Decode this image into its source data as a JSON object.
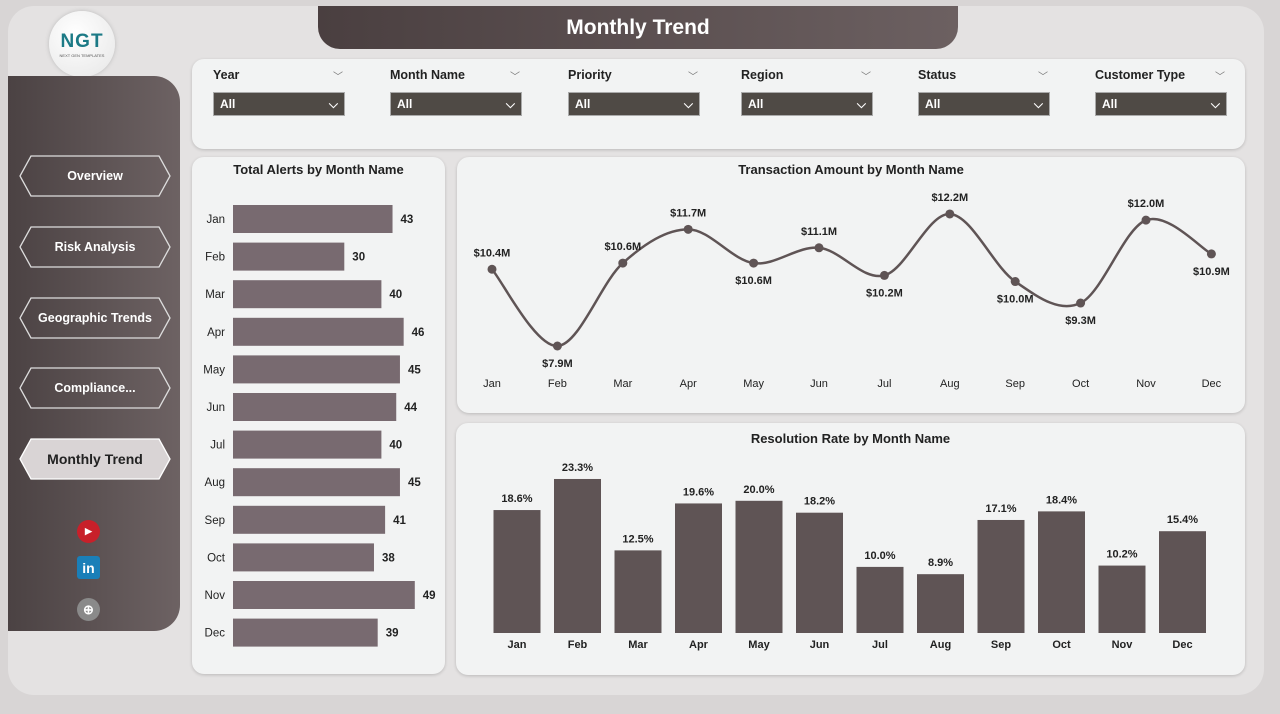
{
  "header": {
    "title": "Monthly Trend"
  },
  "logo": {
    "text": "NGT",
    "tagline": "NEXT GEN TEMPLATES"
  },
  "sidebar": {
    "items": [
      {
        "label": "Overview",
        "active": false
      },
      {
        "label": "Risk Analysis",
        "active": false
      },
      {
        "label": "Geographic Trends",
        "active": false
      },
      {
        "label": "Compliance...",
        "active": false
      },
      {
        "label": "Monthly Trend",
        "active": true
      }
    ],
    "social": [
      {
        "icon": "youtube-icon",
        "label": "YouTube"
      },
      {
        "icon": "linkedin-icon",
        "label": "in"
      },
      {
        "icon": "globe-icon",
        "label": "Web"
      }
    ]
  },
  "filters": [
    {
      "label": "Year",
      "value": "All"
    },
    {
      "label": "Month Name",
      "value": "All"
    },
    {
      "label": "Priority",
      "value": "All"
    },
    {
      "label": "Region",
      "value": "All"
    },
    {
      "label": "Status",
      "value": "All"
    },
    {
      "label": "Customer Type",
      "value": "All"
    }
  ],
  "colors": {
    "accent": "#5f5455",
    "bar_alerts": "#786a70",
    "line": "#5f5455"
  },
  "chart_data": [
    {
      "type": "bar",
      "orientation": "horizontal",
      "title": "Total Alerts by Month Name",
      "categories": [
        "Jan",
        "Feb",
        "Mar",
        "Apr",
        "May",
        "Jun",
        "Jul",
        "Aug",
        "Sep",
        "Oct",
        "Nov",
        "Dec"
      ],
      "values": [
        43,
        30,
        40,
        46,
        45,
        44,
        40,
        45,
        41,
        38,
        49,
        39
      ]
    },
    {
      "type": "line",
      "title": "Transaction Amount by Month Name",
      "categories": [
        "Jan",
        "Feb",
        "Mar",
        "Apr",
        "May",
        "Jun",
        "Jul",
        "Aug",
        "Sep",
        "Oct",
        "Nov",
        "Dec"
      ],
      "values": [
        10.4,
        7.9,
        10.6,
        11.7,
        10.6,
        11.1,
        10.2,
        12.2,
        10.0,
        9.3,
        12.0,
        10.9
      ],
      "labels": [
        "$10.4M",
        "$7.9M",
        "$10.6M",
        "$11.7M",
        "$10.6M",
        "$11.1M",
        "$10.2M",
        "$12.2M",
        "$10.0M",
        "$9.3M",
        "$12.0M",
        "$10.9M"
      ],
      "unit": "$M"
    },
    {
      "type": "bar",
      "title": "Resolution Rate by Month Name",
      "categories": [
        "Jan",
        "Feb",
        "Mar",
        "Apr",
        "May",
        "Jun",
        "Jul",
        "Aug",
        "Sep",
        "Oct",
        "Nov",
        "Dec"
      ],
      "values": [
        18.6,
        23.3,
        12.5,
        19.6,
        20.0,
        18.2,
        10.0,
        8.9,
        17.1,
        18.4,
        10.2,
        15.4
      ],
      "labels": [
        "18.6%",
        "23.3%",
        "12.5%",
        "19.6%",
        "20.0%",
        "18.2%",
        "10.0%",
        "8.9%",
        "17.1%",
        "18.4%",
        "10.2%",
        "15.4%"
      ]
    }
  ]
}
